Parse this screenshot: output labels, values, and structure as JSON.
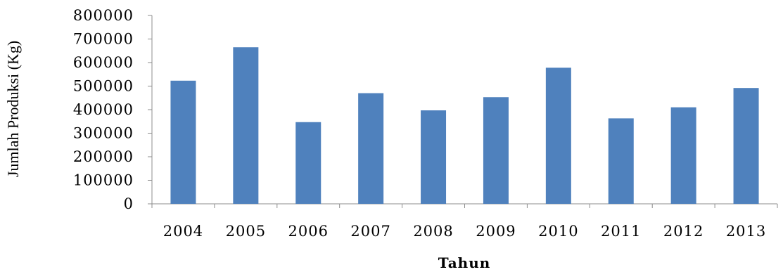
{
  "chart_data": {
    "type": "bar",
    "title": "",
    "xlabel": "Tahun",
    "ylabel": "Jumlah Produksi (Kg)",
    "categories": [
      "2004",
      "2005",
      "2006",
      "2007",
      "2008",
      "2009",
      "2010",
      "2011",
      "2012",
      "2013"
    ],
    "values": [
      523000,
      665000,
      347000,
      470000,
      397000,
      453000,
      578000,
      363000,
      410000,
      492000
    ],
    "ylim": [
      0,
      800000
    ],
    "yticks": [
      "0",
      "100000",
      "200000",
      "300000",
      "400000",
      "500000",
      "600000",
      "700000",
      "800000"
    ],
    "bar_color": "#4f81bd",
    "grid": false,
    "legend": "none"
  }
}
